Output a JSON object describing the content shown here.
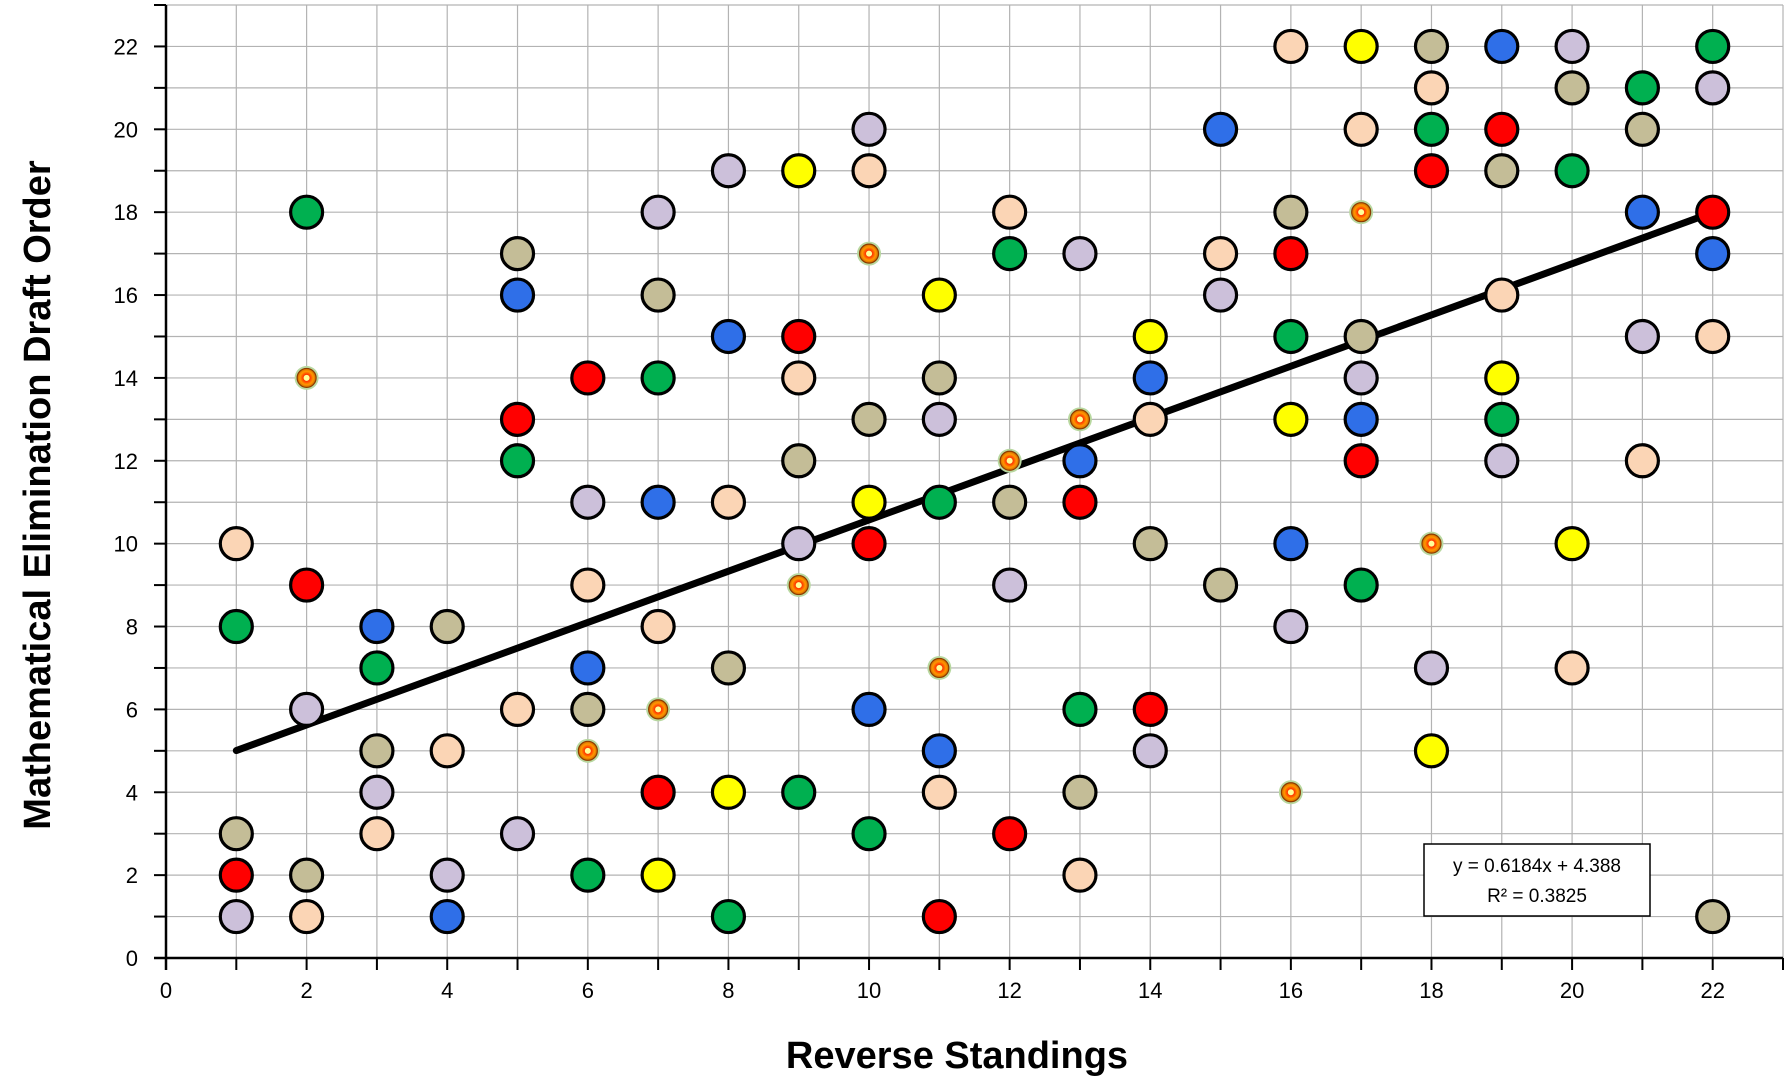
{
  "chart_data": {
    "type": "scatter",
    "title": "",
    "xlabel": "Reverse Standings",
    "ylabel": "Mathematical Elimination Draft Order",
    "xlim": [
      0,
      23
    ],
    "ylim": [
      0,
      23
    ],
    "xticks": [
      0,
      2,
      4,
      6,
      8,
      10,
      12,
      14,
      16,
      18,
      20,
      22
    ],
    "yticks": [
      0,
      2,
      4,
      6,
      8,
      10,
      12,
      14,
      16,
      18,
      20,
      22
    ],
    "grid": true,
    "legend": "none",
    "colors": {
      "red": "#ff0000",
      "green": "#00b050",
      "blue": "#2f6fe8",
      "yellow": "#ffff00",
      "peach": "#fbd5b5",
      "lavender": "#ccc0da",
      "tan": "#c4bd97",
      "special": "#ff9900"
    },
    "points": [
      {
        "x": 1,
        "y": 10,
        "c": "peach"
      },
      {
        "x": 1,
        "y": 8,
        "c": "green"
      },
      {
        "x": 1,
        "y": 3,
        "c": "tan"
      },
      {
        "x": 1,
        "y": 2,
        "c": "red"
      },
      {
        "x": 1,
        "y": 1,
        "c": "lavender"
      },
      {
        "x": 2,
        "y": 18,
        "c": "green"
      },
      {
        "x": 2,
        "y": 14,
        "c": "special"
      },
      {
        "x": 2,
        "y": 9,
        "c": "red"
      },
      {
        "x": 2,
        "y": 6,
        "c": "lavender"
      },
      {
        "x": 2,
        "y": 2,
        "c": "tan"
      },
      {
        "x": 2,
        "y": 1,
        "c": "peach"
      },
      {
        "x": 3,
        "y": 8,
        "c": "blue"
      },
      {
        "x": 3,
        "y": 7,
        "c": "green"
      },
      {
        "x": 3,
        "y": 5,
        "c": "tan"
      },
      {
        "x": 3,
        "y": 4,
        "c": "lavender"
      },
      {
        "x": 3,
        "y": 3,
        "c": "peach"
      },
      {
        "x": 4,
        "y": 8,
        "c": "tan"
      },
      {
        "x": 4,
        "y": 5,
        "c": "peach"
      },
      {
        "x": 4,
        "y": 2,
        "c": "lavender"
      },
      {
        "x": 4,
        "y": 1,
        "c": "blue"
      },
      {
        "x": 5,
        "y": 17,
        "c": "tan"
      },
      {
        "x": 5,
        "y": 16,
        "c": "blue"
      },
      {
        "x": 5,
        "y": 13,
        "c": "red"
      },
      {
        "x": 5,
        "y": 12,
        "c": "green"
      },
      {
        "x": 5,
        "y": 6,
        "c": "peach"
      },
      {
        "x": 5,
        "y": 3,
        "c": "lavender"
      },
      {
        "x": 6,
        "y": 14,
        "c": "red"
      },
      {
        "x": 6,
        "y": 11,
        "c": "lavender"
      },
      {
        "x": 6,
        "y": 9,
        "c": "peach"
      },
      {
        "x": 6,
        "y": 7,
        "c": "blue"
      },
      {
        "x": 6,
        "y": 6,
        "c": "tan"
      },
      {
        "x": 6,
        "y": 5,
        "c": "special"
      },
      {
        "x": 6,
        "y": 2,
        "c": "green"
      },
      {
        "x": 7,
        "y": 18,
        "c": "lavender"
      },
      {
        "x": 7,
        "y": 16,
        "c": "tan"
      },
      {
        "x": 7,
        "y": 14,
        "c": "green"
      },
      {
        "x": 7,
        "y": 11,
        "c": "blue"
      },
      {
        "x": 7,
        "y": 8,
        "c": "peach"
      },
      {
        "x": 7,
        "y": 6,
        "c": "special"
      },
      {
        "x": 7,
        "y": 4,
        "c": "red"
      },
      {
        "x": 7,
        "y": 2,
        "c": "yellow"
      },
      {
        "x": 8,
        "y": 19,
        "c": "lavender"
      },
      {
        "x": 8,
        "y": 15,
        "c": "blue"
      },
      {
        "x": 8,
        "y": 11,
        "c": "peach"
      },
      {
        "x": 8,
        "y": 7,
        "c": "tan"
      },
      {
        "x": 8,
        "y": 4,
        "c": "yellow"
      },
      {
        "x": 8,
        "y": 1,
        "c": "green"
      },
      {
        "x": 9,
        "y": 19,
        "c": "yellow"
      },
      {
        "x": 9,
        "y": 15,
        "c": "red"
      },
      {
        "x": 9,
        "y": 14,
        "c": "peach"
      },
      {
        "x": 9,
        "y": 12,
        "c": "tan"
      },
      {
        "x": 9,
        "y": 10,
        "c": "lavender"
      },
      {
        "x": 9,
        "y": 9,
        "c": "special"
      },
      {
        "x": 9,
        "y": 4,
        "c": "green"
      },
      {
        "x": 10,
        "y": 20,
        "c": "lavender"
      },
      {
        "x": 10,
        "y": 19,
        "c": "peach"
      },
      {
        "x": 10,
        "y": 17,
        "c": "special"
      },
      {
        "x": 10,
        "y": 13,
        "c": "tan"
      },
      {
        "x": 10,
        "y": 11,
        "c": "yellow"
      },
      {
        "x": 10,
        "y": 10,
        "c": "red"
      },
      {
        "x": 10,
        "y": 6,
        "c": "blue"
      },
      {
        "x": 10,
        "y": 3,
        "c": "green"
      },
      {
        "x": 11,
        "y": 16,
        "c": "yellow"
      },
      {
        "x": 11,
        "y": 14,
        "c": "tan"
      },
      {
        "x": 11,
        "y": 13,
        "c": "lavender"
      },
      {
        "x": 11,
        "y": 11,
        "c": "green"
      },
      {
        "x": 11,
        "y": 7,
        "c": "special"
      },
      {
        "x": 11,
        "y": 5,
        "c": "blue"
      },
      {
        "x": 11,
        "y": 4,
        "c": "peach"
      },
      {
        "x": 11,
        "y": 1,
        "c": "red"
      },
      {
        "x": 12,
        "y": 18,
        "c": "peach"
      },
      {
        "x": 12,
        "y": 17,
        "c": "green"
      },
      {
        "x": 12,
        "y": 12,
        "c": "special"
      },
      {
        "x": 12,
        "y": 11,
        "c": "tan"
      },
      {
        "x": 12,
        "y": 9,
        "c": "lavender"
      },
      {
        "x": 12,
        "y": 3,
        "c": "red"
      },
      {
        "x": 13,
        "y": 17,
        "c": "lavender"
      },
      {
        "x": 13,
        "y": 13,
        "c": "special"
      },
      {
        "x": 13,
        "y": 12,
        "c": "blue"
      },
      {
        "x": 13,
        "y": 11,
        "c": "red"
      },
      {
        "x": 13,
        "y": 6,
        "c": "green"
      },
      {
        "x": 13,
        "y": 4,
        "c": "tan"
      },
      {
        "x": 13,
        "y": 2,
        "c": "peach"
      },
      {
        "x": 14,
        "y": 15,
        "c": "yellow"
      },
      {
        "x": 14,
        "y": 14,
        "c": "blue"
      },
      {
        "x": 14,
        "y": 13,
        "c": "peach"
      },
      {
        "x": 14,
        "y": 10,
        "c": "tan"
      },
      {
        "x": 14,
        "y": 6,
        "c": "red"
      },
      {
        "x": 14,
        "y": 5,
        "c": "lavender"
      },
      {
        "x": 15,
        "y": 20,
        "c": "blue"
      },
      {
        "x": 15,
        "y": 17,
        "c": "peach"
      },
      {
        "x": 15,
        "y": 16,
        "c": "lavender"
      },
      {
        "x": 15,
        "y": 9,
        "c": "tan"
      },
      {
        "x": 16,
        "y": 22,
        "c": "peach"
      },
      {
        "x": 16,
        "y": 18,
        "c": "tan"
      },
      {
        "x": 16,
        "y": 17,
        "c": "red"
      },
      {
        "x": 16,
        "y": 15,
        "c": "green"
      },
      {
        "x": 16,
        "y": 13,
        "c": "yellow"
      },
      {
        "x": 16,
        "y": 10,
        "c": "blue"
      },
      {
        "x": 16,
        "y": 8,
        "c": "lavender"
      },
      {
        "x": 16,
        "y": 4,
        "c": "special"
      },
      {
        "x": 17,
        "y": 22,
        "c": "yellow"
      },
      {
        "x": 17,
        "y": 20,
        "c": "peach"
      },
      {
        "x": 17,
        "y": 18,
        "c": "special"
      },
      {
        "x": 17,
        "y": 15,
        "c": "tan"
      },
      {
        "x": 17,
        "y": 14,
        "c": "lavender"
      },
      {
        "x": 17,
        "y": 13,
        "c": "blue"
      },
      {
        "x": 17,
        "y": 12,
        "c": "red"
      },
      {
        "x": 17,
        "y": 9,
        "c": "green"
      },
      {
        "x": 18,
        "y": 22,
        "c": "tan"
      },
      {
        "x": 18,
        "y": 21,
        "c": "peach"
      },
      {
        "x": 18,
        "y": 20,
        "c": "green"
      },
      {
        "x": 18,
        "y": 19,
        "c": "red"
      },
      {
        "x": 18,
        "y": 10,
        "c": "special"
      },
      {
        "x": 18,
        "y": 7,
        "c": "lavender"
      },
      {
        "x": 18,
        "y": 5,
        "c": "yellow"
      },
      {
        "x": 19,
        "y": 22,
        "c": "blue"
      },
      {
        "x": 19,
        "y": 20,
        "c": "red"
      },
      {
        "x": 19,
        "y": 19,
        "c": "tan"
      },
      {
        "x": 19,
        "y": 16,
        "c": "peach"
      },
      {
        "x": 19,
        "y": 14,
        "c": "yellow"
      },
      {
        "x": 19,
        "y": 13,
        "c": "green"
      },
      {
        "x": 19,
        "y": 12,
        "c": "lavender"
      },
      {
        "x": 20,
        "y": 22,
        "c": "lavender"
      },
      {
        "x": 20,
        "y": 21,
        "c": "tan"
      },
      {
        "x": 20,
        "y": 19,
        "c": "green"
      },
      {
        "x": 20,
        "y": 10,
        "c": "yellow"
      },
      {
        "x": 20,
        "y": 7,
        "c": "peach"
      },
      {
        "x": 21,
        "y": 21,
        "c": "green"
      },
      {
        "x": 21,
        "y": 20,
        "c": "tan"
      },
      {
        "x": 21,
        "y": 18,
        "c": "blue"
      },
      {
        "x": 21,
        "y": 15,
        "c": "lavender"
      },
      {
        "x": 21,
        "y": 12,
        "c": "peach"
      },
      {
        "x": 22,
        "y": 22,
        "c": "green"
      },
      {
        "x": 22,
        "y": 21,
        "c": "lavender"
      },
      {
        "x": 22,
        "y": 18,
        "c": "red"
      },
      {
        "x": 22,
        "y": 17,
        "c": "blue"
      },
      {
        "x": 22,
        "y": 15,
        "c": "peach"
      },
      {
        "x": 22,
        "y": 1,
        "c": "tan"
      }
    ],
    "trendline": {
      "type": "linear",
      "slope": 0.6184,
      "intercept": 4.388,
      "x_range": [
        1,
        22
      ],
      "equation": "y = 0.6184x + 4.388",
      "r_squared": "R² = 0.3825"
    }
  }
}
